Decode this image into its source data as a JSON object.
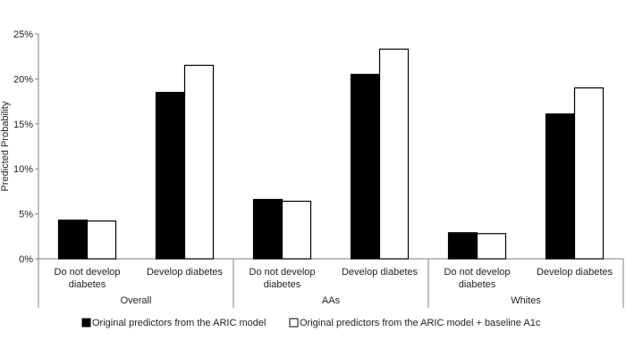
{
  "chart_data": {
    "type": "bar",
    "title": "",
    "xlabel": "",
    "ylabel": "Predicted Probability",
    "ylim": [
      0,
      25
    ],
    "yticks": [
      "0%",
      "5%",
      "10%",
      "15%",
      "20%",
      "25%"
    ],
    "grid": false,
    "legend_position": "bottom",
    "groups": [
      {
        "name": "Overall",
        "categories": [
          "Do not develop diabetes",
          "Develop diabetes"
        ]
      },
      {
        "name": "AAs",
        "categories": [
          "Do not develop diabetes",
          "Develop diabetes"
        ]
      },
      {
        "name": "Whites",
        "categories": [
          "Do not develop diabetes",
          "Develop diabetes"
        ]
      }
    ],
    "category_lines": {
      "Do not develop diabetes": [
        "Do not develop",
        "diabetes"
      ],
      "Develop diabetes": [
        "Develop diabetes"
      ]
    },
    "series": [
      {
        "name": "Original predictors from the ARIC model",
        "color": "#000000",
        "values": [
          4.3,
          18.5,
          6.6,
          20.5,
          2.9,
          16.1
        ]
      },
      {
        "name": "Original predictors from the ARIC model + baseline A1c",
        "color": "#ffffff",
        "values": [
          4.2,
          21.5,
          6.4,
          23.3,
          2.8,
          19.0
        ]
      }
    ]
  }
}
